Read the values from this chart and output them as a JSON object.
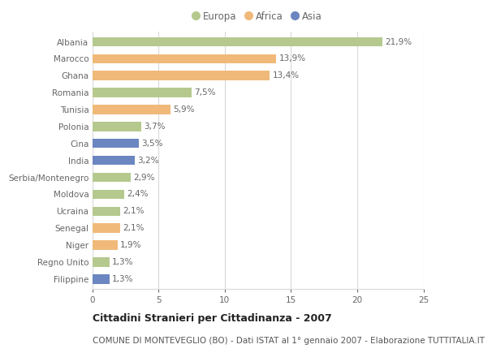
{
  "title1": "Cittadini Stranieri per Cittadinanza - 2007",
  "title2": "COMUNE DI MONTEVEGLIO (BO) - Dati ISTAT al 1° gennaio 2007 - Elaborazione TUTTITALIA.IT",
  "categories": [
    "Albania",
    "Marocco",
    "Ghana",
    "Romania",
    "Tunisia",
    "Polonia",
    "Cina",
    "India",
    "Serbia/Montenegro",
    "Moldova",
    "Ucraina",
    "Senegal",
    "Niger",
    "Regno Unito",
    "Filippine"
  ],
  "values": [
    21.9,
    13.9,
    13.4,
    7.5,
    5.9,
    3.7,
    3.5,
    3.2,
    2.9,
    2.4,
    2.1,
    2.1,
    1.9,
    1.3,
    1.3
  ],
  "continents": [
    "Europa",
    "Africa",
    "Africa",
    "Europa",
    "Africa",
    "Europa",
    "Asia",
    "Asia",
    "Europa",
    "Europa",
    "Europa",
    "Africa",
    "Africa",
    "Europa",
    "Asia"
  ],
  "labels": [
    "21,9%",
    "13,9%",
    "13,4%",
    "7,5%",
    "5,9%",
    "3,7%",
    "3,5%",
    "3,2%",
    "2,9%",
    "2,4%",
    "2,1%",
    "2,1%",
    "1,9%",
    "1,3%",
    "1,3%"
  ],
  "colors": {
    "Europa": "#b5c98e",
    "Africa": "#f0b97a",
    "Asia": "#6b86c0"
  },
  "xlim": [
    0,
    25
  ],
  "xticks": [
    0,
    5,
    10,
    15,
    20,
    25
  ],
  "background_color": "#ffffff",
  "grid_color": "#d8d8d8",
  "bar_height": 0.55,
  "label_fontsize": 7.5,
  "tick_fontsize": 7.5,
  "title1_fontsize": 9,
  "title2_fontsize": 7.5,
  "legend_fontsize": 8.5,
  "legend_markersize": 9
}
